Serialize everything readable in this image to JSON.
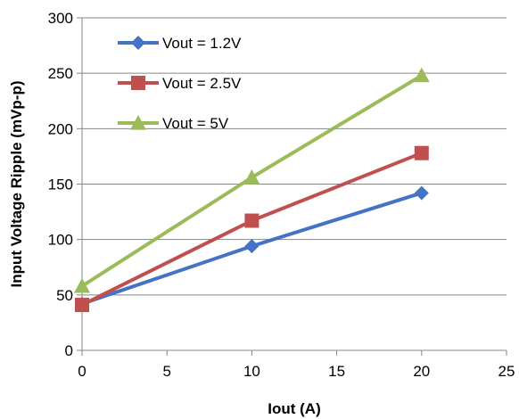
{
  "chart_data": {
    "type": "line",
    "title": "",
    "xlabel": "Iout (A)",
    "ylabel": "Input Voltage Ripple (mVp-p)",
    "xlim": [
      0,
      25
    ],
    "ylim": [
      0,
      300
    ],
    "xticks": [
      0,
      5,
      10,
      15,
      20,
      25
    ],
    "yticks": [
      0,
      50,
      100,
      150,
      200,
      250,
      300
    ],
    "grid": "horizontal",
    "legend_position": "top-left",
    "series": [
      {
        "name": "Vout = 1.2V",
        "color": "#4472C4",
        "marker": "diamond",
        "points": [
          [
            0,
            42
          ],
          [
            10,
            94
          ],
          [
            20,
            142
          ]
        ]
      },
      {
        "name": "Vout = 2.5V",
        "color": "#C0504D",
        "marker": "square",
        "points": [
          [
            0,
            41
          ],
          [
            10,
            117
          ],
          [
            20,
            178
          ]
        ]
      },
      {
        "name": "Vout = 5V",
        "color": "#9BBB59",
        "marker": "triangle",
        "points": [
          [
            0,
            58
          ],
          [
            10,
            156
          ],
          [
            20,
            248
          ]
        ]
      }
    ]
  }
}
